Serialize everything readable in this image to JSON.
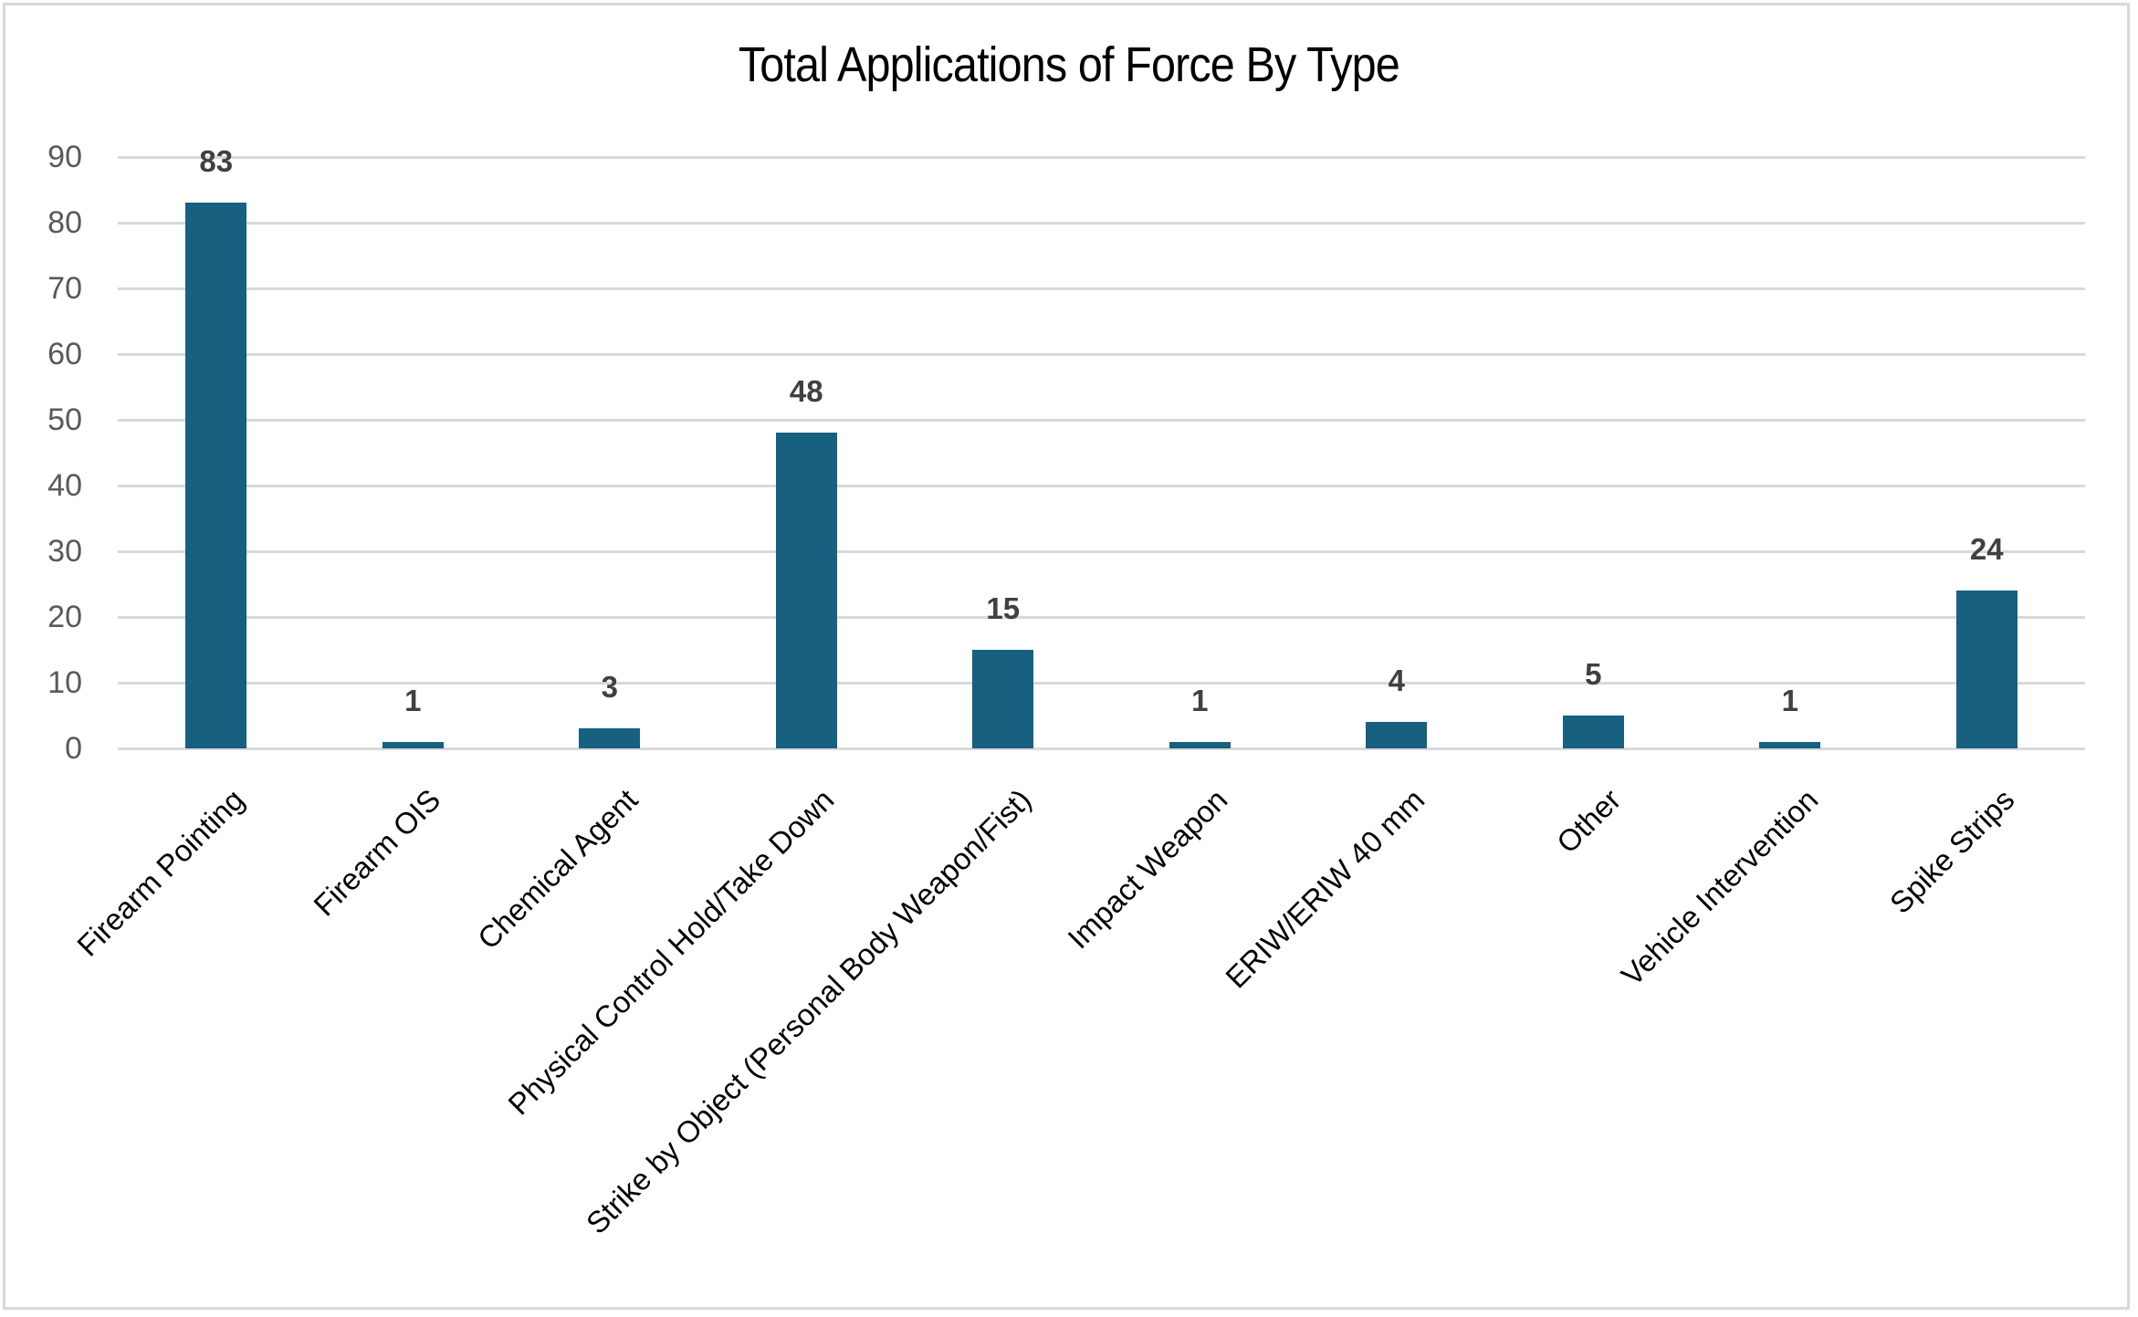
{
  "chart": {
    "title": "Total Applications of Force By Type",
    "bar_color": "#17607F",
    "y_ticks": [
      "90",
      "80",
      "70",
      "60",
      "50",
      "40",
      "30",
      "20",
      "10",
      "0"
    ],
    "bars": [
      {
        "label": "Firearm Pointing",
        "value": "83"
      },
      {
        "label": "Firearm OIS",
        "value": "1"
      },
      {
        "label": "Chemical Agent",
        "value": "3"
      },
      {
        "label": "Physical Control Hold/Take Down",
        "value": "48"
      },
      {
        "label": "Strike by Object (Personal Body Weapon/Fist)",
        "value": "15"
      },
      {
        "label": "Impact Weapon",
        "value": "1"
      },
      {
        "label": "ERIW/ERIW 40 mm",
        "value": "4"
      },
      {
        "label": "Other",
        "value": "5"
      },
      {
        "label": "Vehicle Intervention",
        "value": "1"
      },
      {
        "label": "Spike Strips",
        "value": "24"
      }
    ]
  },
  "chart_data": {
    "type": "bar",
    "title": "Total Applications of Force By Type",
    "xlabel": "",
    "ylabel": "",
    "categories": [
      "Firearm Pointing",
      "Firearm OIS",
      "Chemical Agent",
      "Physical Control Hold/Take Down",
      "Strike by Object (Personal Body Weapon/Fist)",
      "Impact Weapon",
      "ERIW/ERIW 40 mm",
      "Other",
      "Vehicle Intervention",
      "Spike Strips"
    ],
    "values": [
      83,
      1,
      3,
      48,
      15,
      1,
      4,
      5,
      1,
      24
    ],
    "ylim": [
      0,
      90
    ],
    "yticks": [
      0,
      10,
      20,
      30,
      40,
      50,
      60,
      70,
      80,
      90
    ],
    "grid": true,
    "legend": null,
    "data_labels": true,
    "colors": [
      "#17607F"
    ]
  }
}
